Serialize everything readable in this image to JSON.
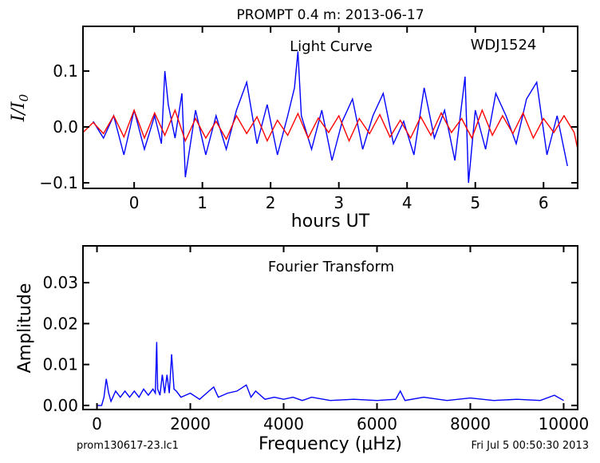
{
  "page": {
    "title": "PROMPT 0.4 m:  2013-06-17",
    "footer_left": "prom130617-23.lc1",
    "footer_right": "Fri Jul  5 00:50:30 2013"
  },
  "colors": {
    "light_curve": "#0000ff",
    "model": "#ff0000",
    "fourier": "#0000ff",
    "axes": "#000000"
  },
  "chart_data": [
    {
      "type": "line",
      "annotations": [
        "Light Curve",
        "WDJ1524"
      ],
      "xlabel": "hours UT",
      "ylabel": "I/I0",
      "xlim": [
        -0.75,
        6.5
      ],
      "ylim": [
        -0.11,
        0.18
      ],
      "xticks": [
        0,
        1,
        2,
        3,
        4,
        5,
        6
      ],
      "xtick_labels": [
        "0",
        "1",
        "2",
        "3",
        "4",
        "5",
        "6"
      ],
      "yticks": [
        -0.1,
        0.0,
        0.1
      ],
      "ytick_labels": [
        "−0.1",
        "0.0",
        "0.1"
      ],
      "series": [
        {
          "color": "blue",
          "x": [
            -0.6,
            -0.45,
            -0.3,
            -0.15,
            0.0,
            0.15,
            0.3,
            0.4,
            0.45,
            0.5,
            0.6,
            0.7,
            0.75,
            0.9,
            1.05,
            1.2,
            1.35,
            1.5,
            1.65,
            1.8,
            1.95,
            2.1,
            2.25,
            2.35,
            2.4,
            2.45,
            2.6,
            2.75,
            2.9,
            3.05,
            3.2,
            3.35,
            3.5,
            3.65,
            3.8,
            3.95,
            4.1,
            4.25,
            4.4,
            4.55,
            4.7,
            4.8,
            4.85,
            4.9,
            5.0,
            5.15,
            5.3,
            5.45,
            5.6,
            5.75,
            5.9,
            6.05,
            6.2,
            6.35
          ],
          "values": [
            0.01,
            -0.02,
            0.02,
            -0.05,
            0.03,
            -0.04,
            0.02,
            -0.03,
            0.1,
            0.04,
            -0.02,
            0.06,
            -0.09,
            0.03,
            -0.05,
            0.02,
            -0.04,
            0.03,
            0.08,
            -0.03,
            0.04,
            -0.05,
            0.02,
            0.07,
            0.135,
            0.02,
            -0.04,
            0.03,
            -0.06,
            0.01,
            0.05,
            -0.04,
            0.02,
            0.06,
            -0.03,
            0.01,
            -0.05,
            0.07,
            -0.02,
            0.03,
            -0.06,
            0.04,
            0.09,
            -0.1,
            0.03,
            -0.04,
            0.06,
            0.02,
            -0.03,
            0.05,
            0.08,
            -0.05,
            0.02,
            -0.07
          ]
        },
        {
          "color": "red",
          "x": [
            -0.75,
            -0.6,
            -0.45,
            -0.3,
            -0.15,
            0.0,
            0.15,
            0.3,
            0.45,
            0.6,
            0.75,
            0.9,
            1.05,
            1.2,
            1.35,
            1.5,
            1.65,
            1.8,
            1.95,
            2.1,
            2.25,
            2.4,
            2.55,
            2.7,
            2.85,
            3.0,
            3.15,
            3.3,
            3.45,
            3.6,
            3.75,
            3.9,
            4.05,
            4.2,
            4.35,
            4.5,
            4.65,
            4.8,
            4.95,
            5.1,
            5.25,
            5.4,
            5.55,
            5.7,
            5.85,
            6.0,
            6.15,
            6.3,
            6.45,
            6.5
          ],
          "values": [
            -0.01,
            0.008,
            -0.012,
            0.02,
            -0.018,
            0.03,
            -0.02,
            0.025,
            -0.015,
            0.03,
            -0.025,
            0.015,
            -0.02,
            0.01,
            -0.022,
            0.02,
            -0.012,
            0.018,
            -0.025,
            0.012,
            -0.015,
            0.024,
            -0.02,
            0.016,
            -0.01,
            0.02,
            -0.025,
            0.015,
            -0.012,
            0.022,
            -0.018,
            0.012,
            -0.02,
            0.018,
            -0.015,
            0.025,
            -0.01,
            0.015,
            -0.02,
            0.03,
            -0.015,
            0.02,
            -0.012,
            0.025,
            -0.02,
            0.015,
            -0.01,
            0.02,
            -0.01,
            -0.04
          ]
        }
      ]
    },
    {
      "type": "line",
      "annotations": [
        "Fourier Transform"
      ],
      "xlabel": "Frequency (μHz)",
      "ylabel": "Amplitude",
      "xlim": [
        -300,
        10300
      ],
      "ylim": [
        -0.001,
        0.039
      ],
      "xticks": [
        0,
        2000,
        4000,
        6000,
        8000,
        10000
      ],
      "xtick_labels": [
        "0",
        "2000",
        "4000",
        "6000",
        "8000",
        "10000"
      ],
      "yticks": [
        0.0,
        0.01,
        0.02,
        0.03
      ],
      "ytick_labels": [
        "0.00",
        "0.01",
        "0.02",
        "0.03"
      ],
      "series": [
        {
          "color": "blue",
          "x": [
            0,
            100,
            150,
            200,
            250,
            300,
            400,
            500,
            600,
            700,
            800,
            900,
            1000,
            1100,
            1200,
            1250,
            1280,
            1300,
            1350,
            1400,
            1450,
            1500,
            1550,
            1600,
            1650,
            1700,
            1800,
            2000,
            2200,
            2400,
            2500,
            2600,
            2800,
            3000,
            3200,
            3300,
            3400,
            3600,
            3800,
            4000,
            4200,
            4400,
            4600,
            5000,
            5500,
            6000,
            6400,
            6500,
            6600,
            7000,
            7500,
            8000,
            8500,
            9000,
            9500,
            9800,
            10000
          ],
          "values": [
            0.0,
            0.0,
            0.002,
            0.0065,
            0.003,
            0.001,
            0.0035,
            0.002,
            0.0035,
            0.002,
            0.0035,
            0.002,
            0.004,
            0.0025,
            0.004,
            0.003,
            0.0155,
            0.004,
            0.0025,
            0.0075,
            0.003,
            0.0075,
            0.003,
            0.0125,
            0.004,
            0.0035,
            0.002,
            0.003,
            0.0015,
            0.0035,
            0.0045,
            0.002,
            0.003,
            0.0035,
            0.005,
            0.002,
            0.0035,
            0.0015,
            0.002,
            0.0015,
            0.002,
            0.0012,
            0.002,
            0.0012,
            0.0015,
            0.0012,
            0.0015,
            0.0035,
            0.0012,
            0.002,
            0.0012,
            0.0018,
            0.0012,
            0.0015,
            0.0012,
            0.0025,
            0.0012
          ]
        }
      ]
    }
  ]
}
